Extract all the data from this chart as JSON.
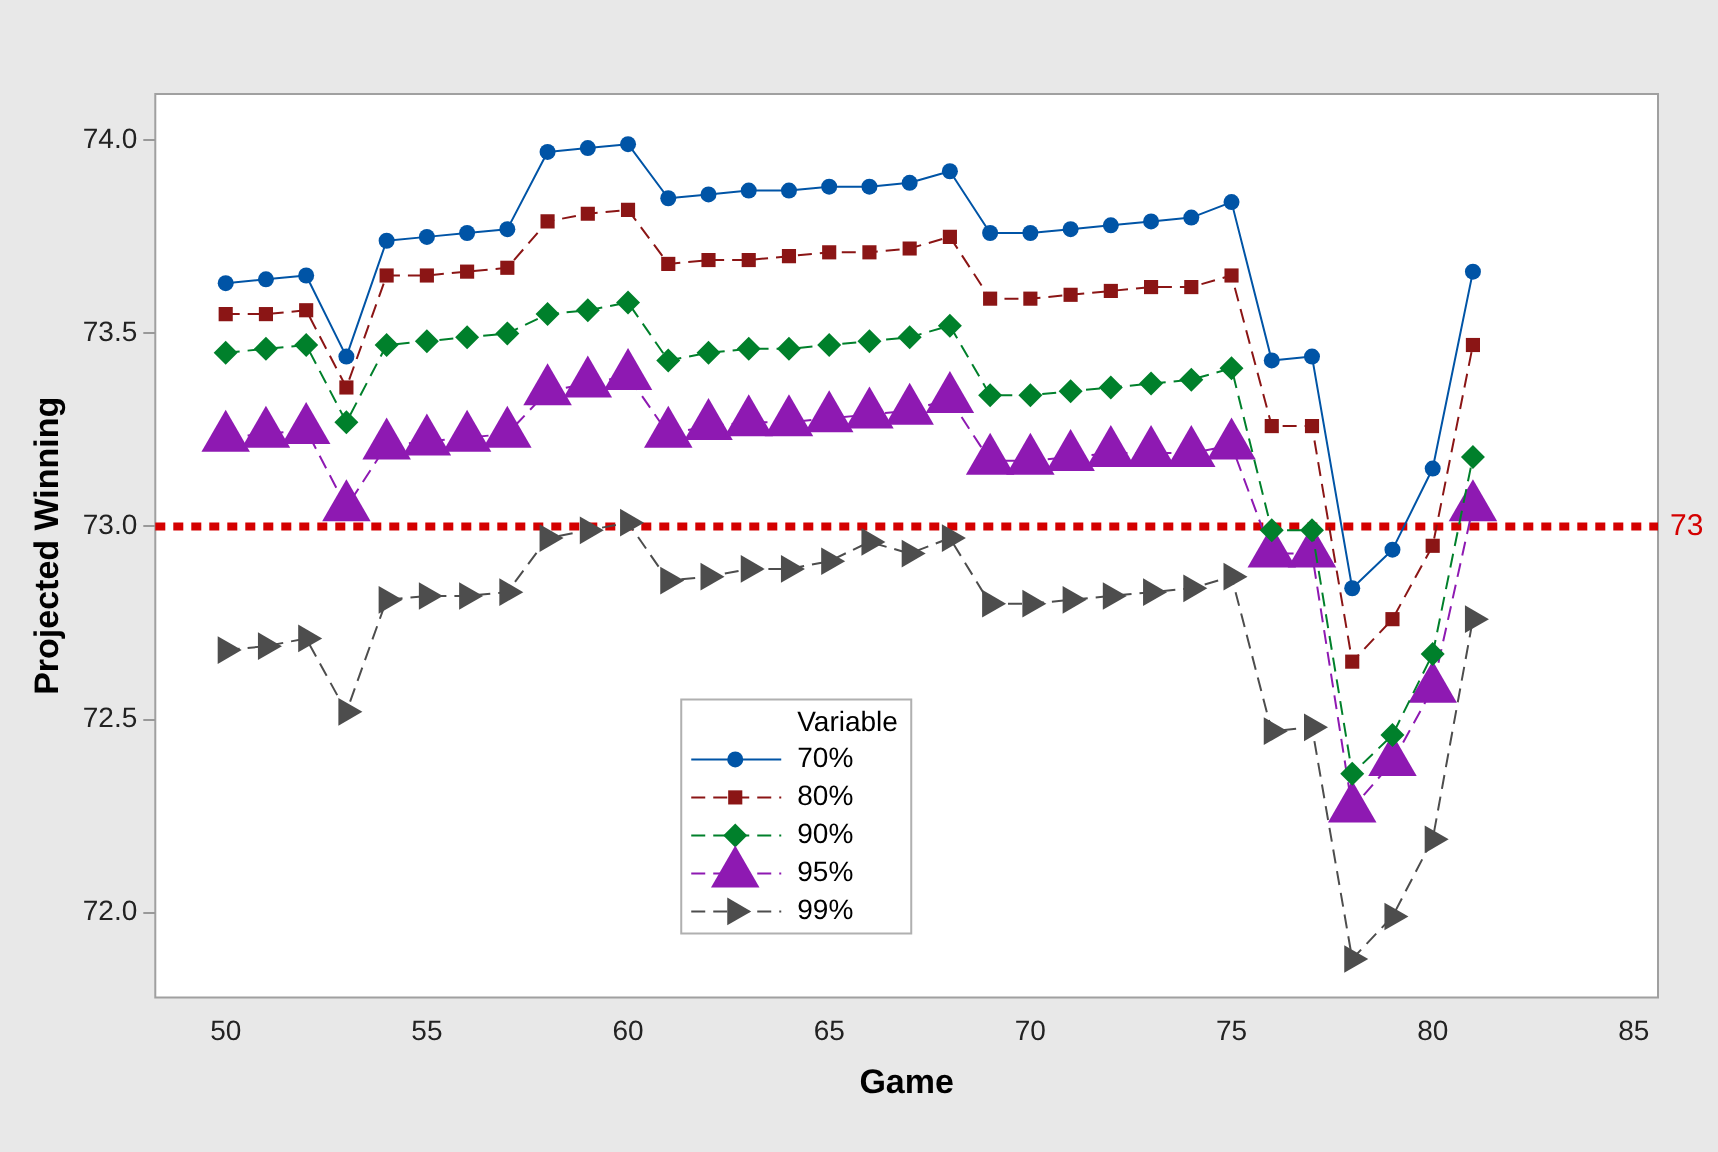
{
  "chart_data": {
    "type": "line",
    "xlabel": "Game",
    "ylabel": "Projected Winning",
    "legend_title": "Variable",
    "legend": "bottom",
    "grid": false,
    "x": [
      50,
      51,
      52,
      53,
      54,
      55,
      56,
      57,
      58,
      59,
      60,
      61,
      62,
      63,
      64,
      65,
      66,
      67,
      68,
      69,
      70,
      71,
      72,
      73,
      74,
      75,
      76,
      77,
      78,
      79,
      80,
      81
    ],
    "xlim": [
      48.25,
      85.6
    ],
    "xticks": [
      50,
      55,
      60,
      65,
      70,
      75,
      80,
      85
    ],
    "ylim": [
      71.78,
      74.12
    ],
    "yticks": [
      {
        "value": 72,
        "label": "72.0"
      },
      {
        "value": 72.5,
        "label": "72.5"
      },
      {
        "value": 73,
        "label": "73.0"
      },
      {
        "value": 73.5,
        "label": "73.5"
      },
      {
        "value": 74,
        "label": "74.0"
      }
    ],
    "ref_lines": [
      {
        "axis": "y",
        "value": 73,
        "label": "73",
        "color": "#d40000",
        "line_style": "dotted"
      }
    ],
    "series": [
      {
        "name": "70%",
        "color": "#0054a6",
        "marker": "circle",
        "line_style": "solid",
        "values": [
          73.63,
          73.64,
          73.65,
          73.44,
          73.74,
          73.75,
          73.76,
          73.77,
          73.97,
          73.98,
          73.99,
          73.85,
          73.86,
          73.87,
          73.87,
          73.88,
          73.88,
          73.89,
          73.92,
          73.76,
          73.76,
          73.77,
          73.78,
          73.79,
          73.8,
          73.84,
          73.43,
          73.44,
          72.84,
          72.94,
          73.15,
          73.66
        ]
      },
      {
        "name": "80%",
        "color": "#8b1515",
        "marker": "square",
        "line_style": "dashed",
        "values": [
          73.55,
          73.55,
          73.56,
          73.36,
          73.65,
          73.65,
          73.66,
          73.67,
          73.79,
          73.81,
          73.82,
          73.68,
          73.69,
          73.69,
          73.7,
          73.71,
          73.71,
          73.72,
          73.75,
          73.59,
          73.59,
          73.6,
          73.61,
          73.62,
          73.62,
          73.65,
          73.26,
          73.26,
          72.65,
          72.76,
          72.95,
          73.47
        ]
      },
      {
        "name": "90%",
        "color": "#00802b",
        "marker": "diamond",
        "line_style": "dashed",
        "values": [
          73.45,
          73.46,
          73.47,
          73.27,
          73.47,
          73.48,
          73.49,
          73.5,
          73.55,
          73.56,
          73.58,
          73.43,
          73.45,
          73.46,
          73.46,
          73.47,
          73.48,
          73.49,
          73.52,
          73.34,
          73.34,
          73.35,
          73.36,
          73.37,
          73.38,
          73.41,
          72.99,
          72.99,
          72.36,
          72.46,
          72.67,
          73.18
        ]
      },
      {
        "name": "95%",
        "color": "#8e19b2",
        "marker": "triangle",
        "line_style": "dashed",
        "values": [
          73.23,
          73.24,
          73.25,
          73.05,
          73.21,
          73.22,
          73.23,
          73.24,
          73.35,
          73.37,
          73.39,
          73.24,
          73.26,
          73.27,
          73.27,
          73.28,
          73.29,
          73.3,
          73.33,
          73.17,
          73.17,
          73.18,
          73.19,
          73.19,
          73.19,
          73.21,
          72.93,
          72.93,
          72.27,
          72.39,
          72.58,
          73.05
        ]
      },
      {
        "name": "99%",
        "color": "#4d4d4d",
        "marker": "triangle-right",
        "line_style": "dashed",
        "values": [
          72.68,
          72.69,
          72.71,
          72.52,
          72.81,
          72.82,
          72.82,
          72.83,
          72.97,
          72.99,
          73.01,
          72.86,
          72.87,
          72.89,
          72.89,
          72.91,
          72.96,
          72.93,
          72.97,
          72.8,
          72.8,
          72.81,
          72.82,
          72.83,
          72.84,
          72.87,
          72.47,
          72.48,
          71.88,
          71.99,
          72.19,
          72.76
        ]
      }
    ]
  }
}
